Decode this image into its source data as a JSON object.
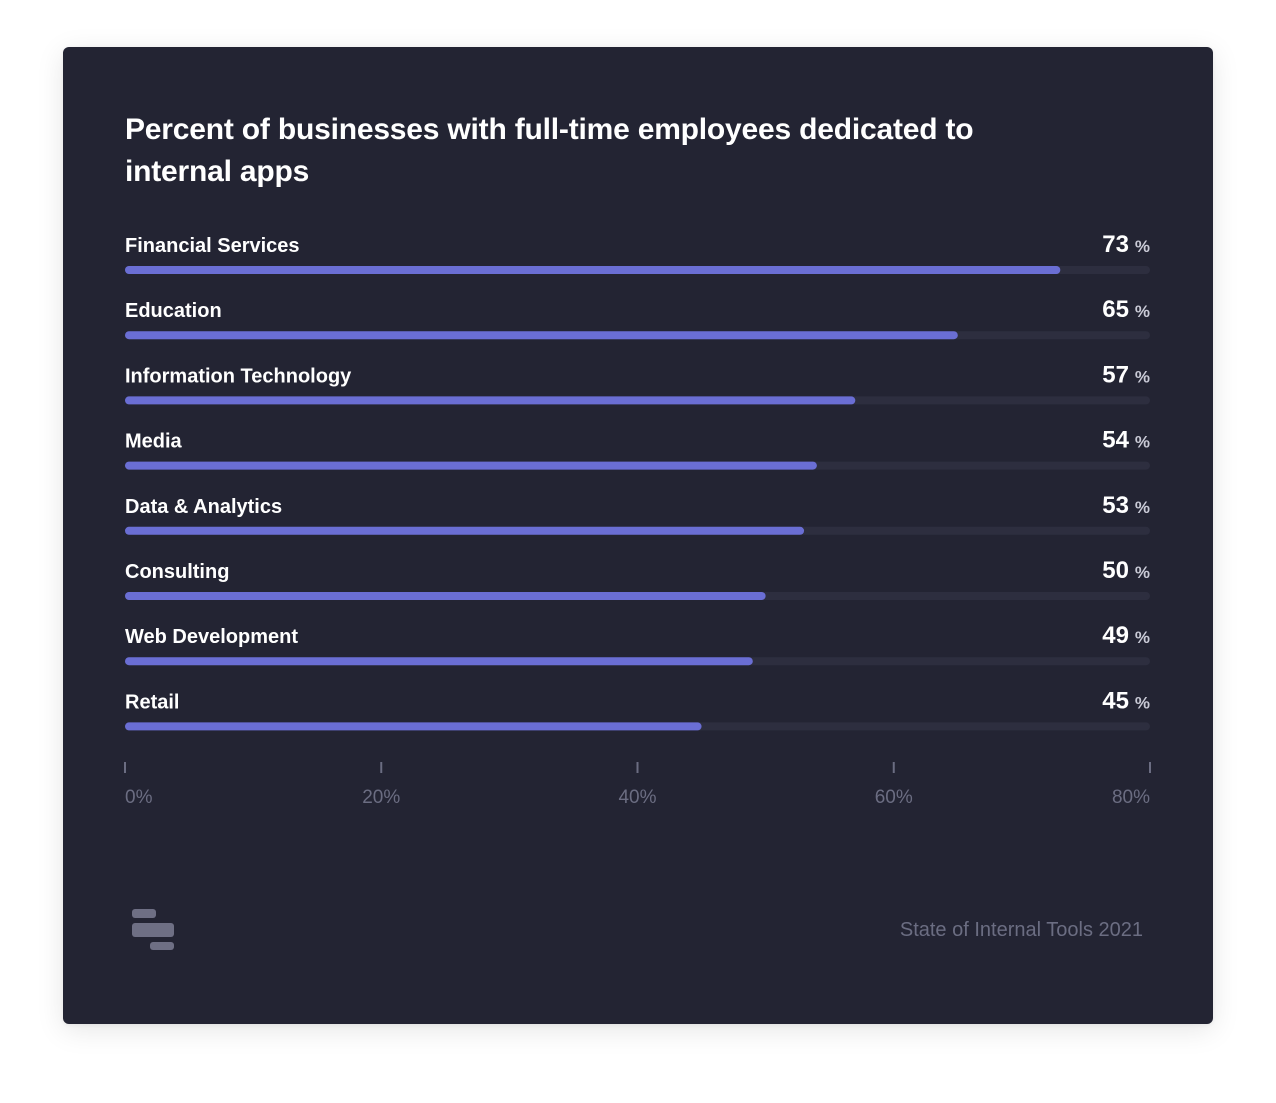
{
  "colors": {
    "background": "#232433",
    "bar_fill": "#6a6ed4",
    "bar_track": "#2d2e3f",
    "label": "#ffffff",
    "axis": "#6b6d82"
  },
  "chart_data": {
    "type": "bar",
    "orientation": "horizontal",
    "title": "Percent of businesses with full-time employees dedicated to internal apps",
    "categories": [
      "Financial Services",
      "Education",
      "Information Technology",
      "Media",
      "Data & Analytics",
      "Consulting",
      "Web Development",
      "Retail"
    ],
    "values": [
      73,
      65,
      57,
      54,
      53,
      50,
      49,
      45
    ],
    "unit": "%",
    "xlim": [
      0,
      80
    ],
    "ticks": [
      0,
      20,
      40,
      60,
      80
    ],
    "tick_labels": [
      "0%",
      "20%",
      "40%",
      "60%",
      "80%"
    ],
    "xlabel": "",
    "ylabel": "",
    "grid": false,
    "legend": "none"
  },
  "footer": {
    "source_text": "State of Internal Tools 2021",
    "logo_icon": "stacked-bars-logo-icon"
  }
}
